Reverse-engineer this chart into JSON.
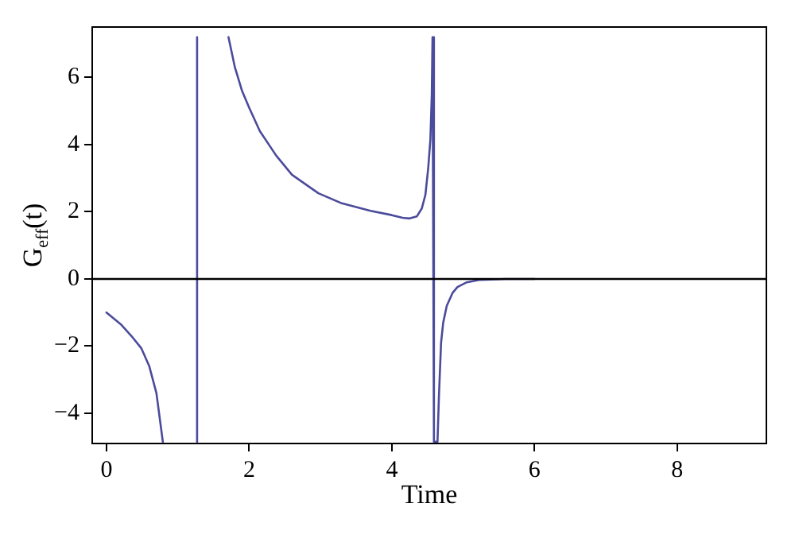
{
  "chart_data": {
    "type": "line",
    "xlabel": "Time",
    "ylabel": "G$_{eff}$(t)",
    "x": [
      0,
      0.2,
      0.35,
      0.49,
      0.6,
      0.7,
      0.79,
      null,
      1.27,
      1.27,
      null,
      1.71,
      1.8,
      1.9,
      2.0,
      2.15,
      2.38,
      2.6,
      2.97,
      3.3,
      3.7,
      4.0,
      4.15,
      4.25,
      4.35,
      4.42,
      4.47,
      4.51,
      4.54,
      4.56,
      4.57,
      4.59,
      4.64,
      4.66,
      4.69,
      4.72,
      4.77,
      4.85,
      4.92,
      5.05,
      5.22,
      5.6,
      6.0
    ],
    "series": [
      {
        "color": "#4b4b9b",
        "values": [
          -1.0,
          -1.35,
          -1.7,
          -2.07,
          -2.6,
          -3.4,
          -4.85,
          null,
          -4.85,
          7.2,
          null,
          7.2,
          6.3,
          5.6,
          5.1,
          4.4,
          3.67,
          3.1,
          2.55,
          2.25,
          2.03,
          1.9,
          1.82,
          1.8,
          1.86,
          2.1,
          2.5,
          3.3,
          4.15,
          5.5,
          7.2,
          -4.85,
          -4.85,
          -3.5,
          -1.9,
          -1.3,
          -0.8,
          -0.42,
          -0.24,
          -0.1,
          -0.03,
          0,
          0
        ]
      }
    ],
    "xlim": [
      -0.2,
      9.25
    ],
    "xticks": [
      0,
      2,
      4,
      6,
      8
    ],
    "ylim": [
      -4.9,
      7.5
    ],
    "yticks": [
      -4,
      -2,
      0,
      2,
      4,
      6
    ],
    "ref_lines": [
      {
        "axis": "y",
        "value": 0,
        "color": "#000000"
      }
    ],
    "grid": false,
    "legend": false,
    "marker": "none",
    "line_style": "solid"
  }
}
